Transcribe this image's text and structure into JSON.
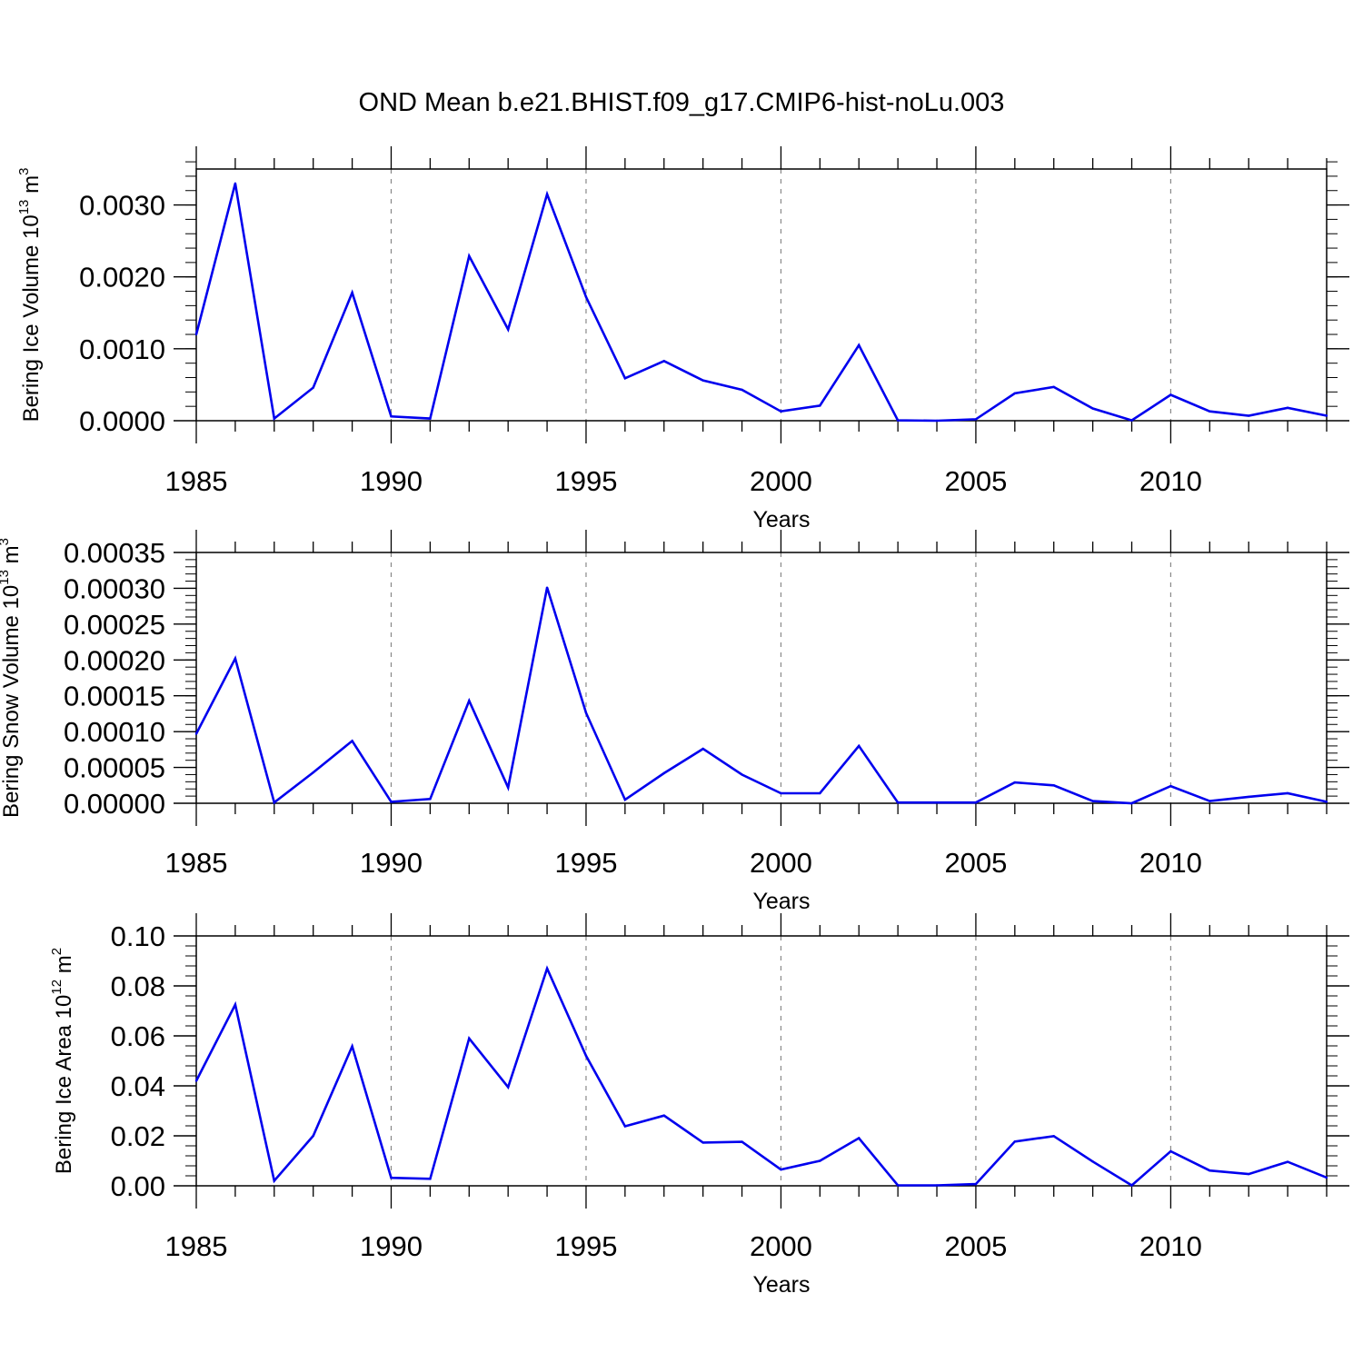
{
  "title": "OND Mean b.e21.BHIST.f09_g17.CMIP6-hist-noLu.003",
  "chart_data": [
    {
      "type": "line",
      "ylabel": "Bering Ice Volume",
      "ylabel_unit_base": "10",
      "ylabel_unit_exp": "13",
      "ylabel_unit": "m",
      "ylabel_unit_power": "3",
      "xlabel": "Years",
      "color": "#0000ee",
      "xlim": [
        1985,
        2014
      ],
      "ylim": [
        0.0,
        0.0035
      ],
      "yticks": [
        0.0,
        0.001,
        0.002,
        0.003
      ],
      "ytick_labels": [
        "0.0000",
        "0.0010",
        "0.0020",
        "0.0030"
      ],
      "y_minor_step": 0.0002,
      "xticks": [
        1985,
        1990,
        1995,
        2000,
        2005,
        2010
      ],
      "xtick_labels": [
        "1985",
        "1990",
        "1995",
        "2000",
        "2005",
        "2010"
      ],
      "x": [
        1985,
        1986,
        1987,
        1988,
        1989,
        1990,
        1991,
        1992,
        1993,
        1994,
        1995,
        1996,
        1997,
        1998,
        1999,
        2000,
        2001,
        2002,
        2003,
        2004,
        2005,
        2006,
        2007,
        2008,
        2009,
        2010,
        2011,
        2012,
        2013,
        2014
      ],
      "values": [
        0.0012,
        0.0033,
        3e-05,
        0.00046,
        0.00178,
        6e-05,
        3e-05,
        0.00229,
        0.00127,
        0.00315,
        0.00172,
        0.00059,
        0.00083,
        0.00056,
        0.00043,
        0.00013,
        0.00021,
        0.00105,
        5e-06,
        0.0,
        2e-05,
        0.00038,
        0.00047,
        0.00017,
        5e-06,
        0.00036,
        0.00013,
        7e-05,
        0.00018,
        7e-05
      ]
    },
    {
      "type": "line",
      "ylabel": "Bering Snow Volume",
      "ylabel_unit_base": "10",
      "ylabel_unit_exp": "13",
      "ylabel_unit": "m",
      "ylabel_unit_power": "3",
      "xlabel": "Years",
      "color": "#0000ee",
      "xlim": [
        1985,
        2014
      ],
      "ylim": [
        0.0,
        0.00035
      ],
      "yticks": [
        0.0,
        5e-05,
        0.0001,
        0.00015,
        0.0002,
        0.00025,
        0.0003,
        0.00035
      ],
      "ytick_labels": [
        "0.00000",
        "0.00005",
        "0.00010",
        "0.00015",
        "0.00020",
        "0.00025",
        "0.00030",
        "0.00035"
      ],
      "y_minor_step": 1e-05,
      "xticks": [
        1985,
        1990,
        1995,
        2000,
        2005,
        2010
      ],
      "xtick_labels": [
        "1985",
        "1990",
        "1995",
        "2000",
        "2005",
        "2010"
      ],
      "x": [
        1985,
        1986,
        1987,
        1988,
        1989,
        1990,
        1991,
        1992,
        1993,
        1994,
        1995,
        1996,
        1997,
        1998,
        1999,
        2000,
        2001,
        2002,
        2003,
        2004,
        2005,
        2006,
        2007,
        2008,
        2009,
        2010,
        2011,
        2012,
        2013,
        2014
      ],
      "values": [
        9.7e-05,
        0.000202,
        1e-06,
        4.3e-05,
        8.7e-05,
        2e-06,
        6e-06,
        0.000143,
        2.2e-05,
        0.000301,
        0.000126,
        5e-06,
        4.2e-05,
        7.6e-05,
        4e-05,
        1.4e-05,
        1.4e-05,
        8e-05,
        1e-06,
        1e-06,
        1e-06,
        2.9e-05,
        2.5e-05,
        3e-06,
        0.0,
        2.4e-05,
        3e-06,
        9e-06,
        1.4e-05,
        2e-06
      ]
    },
    {
      "type": "line",
      "ylabel": "Bering Ice Area",
      "ylabel_unit_base": "10",
      "ylabel_unit_exp": "12",
      "ylabel_unit": "m",
      "ylabel_unit_power": "2",
      "xlabel": "Years",
      "color": "#0000ee",
      "xlim": [
        1985,
        2014
      ],
      "ylim": [
        0.0,
        0.1
      ],
      "yticks": [
        0.0,
        0.02,
        0.04,
        0.06,
        0.08,
        0.1
      ],
      "ytick_labels": [
        "0.00",
        "0.02",
        "0.04",
        "0.06",
        "0.08",
        "0.10"
      ],
      "y_minor_step": 0.004,
      "xticks": [
        1985,
        1990,
        1995,
        2000,
        2005,
        2010
      ],
      "xtick_labels": [
        "1985",
        "1990",
        "1995",
        "2000",
        "2005",
        "2010"
      ],
      "x": [
        1985,
        1986,
        1987,
        1988,
        1989,
        1990,
        1991,
        1992,
        1993,
        1994,
        1995,
        1996,
        1997,
        1998,
        1999,
        2000,
        2001,
        2002,
        2003,
        2004,
        2005,
        2006,
        2007,
        2008,
        2009,
        2010,
        2011,
        2012,
        2013,
        2014
      ],
      "values": [
        0.042,
        0.0725,
        0.002,
        0.02,
        0.0558,
        0.0032,
        0.0028,
        0.059,
        0.0395,
        0.087,
        0.052,
        0.0238,
        0.0281,
        0.0173,
        0.0176,
        0.0065,
        0.01,
        0.0191,
        0.0002,
        0.0002,
        0.0007,
        0.0177,
        0.0199,
        0.0097,
        0.0002,
        0.0138,
        0.0061,
        0.0047,
        0.0096,
        0.0033
      ]
    }
  ]
}
